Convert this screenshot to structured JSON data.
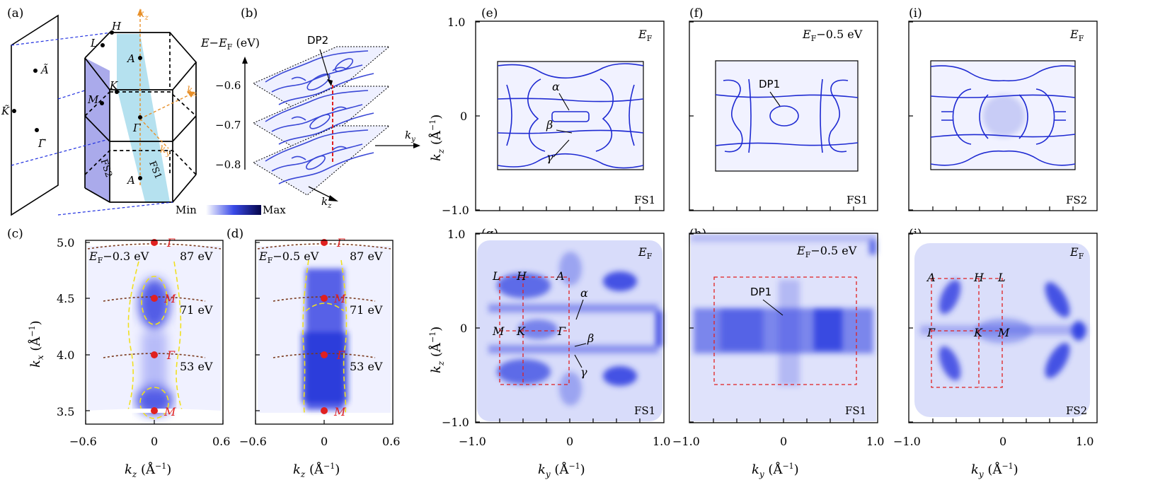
{
  "panel_labels": {
    "a": "(a)",
    "b": "(b)",
    "c": "(c)",
    "d": "(d)",
    "e": "(e)",
    "f": "(f)",
    "g": "(g)",
    "h": "(h)",
    "i": "(i)",
    "j": "(j)"
  },
  "bz": {
    "points": {
      "H": "H",
      "L": "L",
      "A_top": "A",
      "K": "K",
      "M": "M",
      "Gamma": "Γ",
      "A_bottom": "A",
      "A_tilde": "Ã",
      "K_tilde": "K̃",
      "Gamma_tilde": "Γ̃"
    },
    "axes": {
      "kz": "k",
      "kz_sub": "z",
      "kx": "k",
      "kx_sub": "x",
      "ky": "k",
      "ky_sub": "y"
    },
    "planes": {
      "fs1": "FS1",
      "fs2": "FS2"
    }
  },
  "stack": {
    "ylabel": "E−E",
    "ylabel_sub": "F",
    "ylabel_unit": " (eV)",
    "ticks": [
      "−0.6",
      "−0.7",
      "−0.8"
    ],
    "dp_label": "DP2",
    "axis_ky": "k",
    "axis_ky_sub": "y",
    "axis_kz": "k",
    "axis_kz_sub": "z",
    "colorbar_min": "Min",
    "colorbar_max": "Max"
  },
  "panel_c": {
    "energy": "E",
    "energy_sub": "F",
    "energy_rest": "−0.3 eV",
    "photons": [
      "87 eV",
      "71 eV",
      "53 eV"
    ],
    "points": [
      "Γ",
      "M",
      "Γ",
      "M"
    ],
    "yticks": [
      "5.0",
      "4.5",
      "4.0",
      "3.5"
    ],
    "xticks": [
      "−0.6",
      "0",
      "0.6"
    ],
    "ylabel": "k",
    "ylabel_sub": "x",
    "ylabel_unit": " (Å",
    "ylabel_exp": "−1",
    "ylabel_close": ")",
    "xlabel": "k",
    "xlabel_sub": "z",
    "xlabel_unit": " (Å",
    "xlabel_exp": "−1",
    "xlabel_close": ")"
  },
  "panel_d": {
    "energy": "E",
    "energy_sub": "F",
    "energy_rest": "−0.5 eV",
    "photons": [
      "87 eV",
      "71 eV",
      "53 eV"
    ],
    "points": [
      "Γ",
      "M",
      "Γ",
      "M"
    ],
    "xticks": [
      "−0.6",
      "0",
      "0.6"
    ],
    "xlabel": "k",
    "xlabel_sub": "z",
    "xlabel_unit": " (Å",
    "xlabel_exp": "−1",
    "xlabel_close": ")"
  },
  "panel_e": {
    "energy": "E",
    "energy_sub": "F",
    "energy_rest": "",
    "plane": "FS1",
    "bands": [
      "α",
      "β",
      "γ"
    ]
  },
  "panel_f": {
    "energy": "E",
    "energy_sub": "F",
    "energy_rest": "−0.5 eV",
    "plane": "FS1",
    "dp": "DP1"
  },
  "panel_i": {
    "energy": "E",
    "energy_sub": "F",
    "energy_rest": "",
    "plane": "FS2"
  },
  "panel_g": {
    "energy": "E",
    "energy_sub": "F",
    "energy_rest": "",
    "plane": "FS1",
    "bands": [
      "α",
      "β",
      "γ"
    ],
    "points": [
      "L",
      "H",
      "A",
      "M",
      "K",
      "Γ"
    ]
  },
  "panel_h": {
    "energy": "E",
    "energy_sub": "F",
    "energy_rest": "−0.5 eV",
    "plane": "FS1",
    "dp": "DP1"
  },
  "panel_j": {
    "energy": "E",
    "energy_sub": "F",
    "energy_rest": "",
    "plane": "FS2",
    "points": [
      "A",
      "H",
      "L",
      "Γ",
      "K",
      "M"
    ]
  },
  "kz_axis": {
    "yticks": [
      "1.0",
      "0",
      "−1.0"
    ],
    "label": "k",
    "label_sub": "z",
    "unit": " (Å",
    "exp": "−1",
    "close": ")"
  },
  "ky_axis": {
    "xticks": [
      "−1.0",
      "0",
      "1.0"
    ],
    "label": "k",
    "label_sub": "y",
    "unit": " (Å",
    "exp": "−1",
    "close": ")"
  },
  "colors": {
    "intensity": "#1a1ad9",
    "intensity_dark": "#0a0a7a",
    "path": "#e02020",
    "guide": "#f0e020",
    "kaxis": "#e8902a",
    "dashed_blue": "#2030e0",
    "fs1": "#a8dcec",
    "fs2": "#9a9ae6",
    "arc": "#7a3a1e"
  }
}
